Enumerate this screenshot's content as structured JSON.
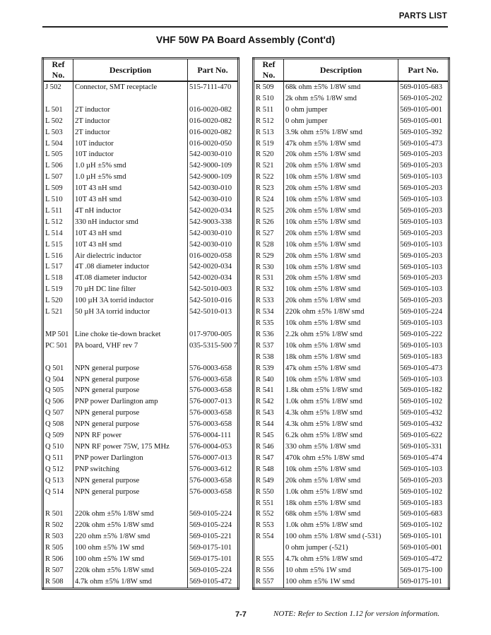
{
  "header": {
    "section": "PARTS LIST",
    "title": "VHF 50W PA Board Assembly (Cont'd)"
  },
  "columns": {
    "ref": "Ref No.",
    "description": "Description",
    "part": "Part No."
  },
  "left_rows": [
    [
      "J 502",
      "Connector, SMT receptacle",
      "515-7111-470"
    ],
    [
      "",
      "",
      ""
    ],
    [
      "L 501",
      "2T inductor",
      "016-0020-082"
    ],
    [
      "L 502",
      "2T inductor",
      "016-0020-082"
    ],
    [
      "L 503",
      "2T inductor",
      "016-0020-082"
    ],
    [
      "L 504",
      "10T inductor",
      "016-0020-050"
    ],
    [
      "L 505",
      "10T inductor",
      "542-0030-010"
    ],
    [
      "L 506",
      "1.0 µH ±5% smd",
      "542-9000-109"
    ],
    [
      "L 507",
      "1.0 µH ±5% smd",
      "542-9000-109"
    ],
    [
      "L 509",
      "10T 43 nH smd",
      "542-0030-010"
    ],
    [
      "L 510",
      "10T 43 nH smd",
      "542-0030-010"
    ],
    [
      "L 511",
      "4T nH inductor",
      "542-0020-034"
    ],
    [
      "L 512",
      "330 nH inductor smd",
      "542-9003-338"
    ],
    [
      "L 514",
      "10T 43 nH smd",
      "542-0030-010"
    ],
    [
      "L 515",
      "10T 43 nH smd",
      "542-0030-010"
    ],
    [
      "L 516",
      "Air dielectric inductor",
      "016-0020-058"
    ],
    [
      "L 517",
      "4T .08 diameter inductor",
      "542-0020-034"
    ],
    [
      "L 518",
      "4T.08 diameter inductor",
      "542-0020-034"
    ],
    [
      "L 519",
      "70 µH DC line filter",
      "542-5010-003"
    ],
    [
      "L 520",
      "100 µH 3A torrid inductor",
      "542-5010-016"
    ],
    [
      "L 521",
      "50 µH 3A torrid inductor",
      "542-5010-013"
    ],
    [
      "",
      "",
      ""
    ],
    [
      "MP 501",
      "Line choke tie-down bracket",
      "017-9700-005"
    ],
    [
      "PC 501",
      "PA board, VHF rev 7",
      "035-5315-500 7"
    ],
    [
      "",
      "",
      ""
    ],
    [
      "Q 501",
      "NPN general purpose",
      "576-0003-658"
    ],
    [
      "Q 504",
      "NPN general purpose",
      "576-0003-658"
    ],
    [
      "Q 505",
      "NPN general purpose",
      "576-0003-658"
    ],
    [
      "Q 506",
      "PNP power Darlington amp",
      "576-0007-013"
    ],
    [
      "Q 507",
      "NPN general purpose",
      "576-0003-658"
    ],
    [
      "Q 508",
      "NPN general purpose",
      "576-0003-658"
    ],
    [
      "Q 509",
      "NPN RF power",
      "576-0004-111"
    ],
    [
      "Q 510",
      "NPN RF power 75W, 175 MHz",
      "576-0004-053"
    ],
    [
      "Q 511",
      "PNP power Darlington",
      "576-0007-013"
    ],
    [
      "Q 512",
      "PNP switching",
      "576-0003-612"
    ],
    [
      "Q 513",
      "NPN general purpose",
      "576-0003-658"
    ],
    [
      "Q 514",
      "NPN general purpose",
      "576-0003-658"
    ],
    [
      "",
      "",
      ""
    ],
    [
      "R 501",
      "220k ohm ±5% 1/8W smd",
      "569-0105-224"
    ],
    [
      "R 502",
      "220k ohm ±5% 1/8W smd",
      "569-0105-224"
    ],
    [
      "R 503",
      "220 ohm ±5% 1/8W smd",
      "569-0105-221"
    ],
    [
      "R 505",
      "100 ohm ±5% 1W smd",
      "569-0175-101"
    ],
    [
      "R 506",
      "100 ohm ±5% 1W smd",
      "569-0175-101"
    ],
    [
      "R 507",
      "220k ohm ±5% 1/8W smd",
      "569-0105-224"
    ],
    [
      "R 508",
      "4.7k ohm ±5% 1/8W smd",
      "569-0105-472"
    ]
  ],
  "right_rows": [
    [
      "R 509",
      "68k ohm ±5% 1/8W smd",
      "569-0105-683"
    ],
    [
      "R 510",
      "2k ohm ±5% 1/8W smd",
      "569-0105-202"
    ],
    [
      "R 511",
      "0 ohm jumper",
      "569-0105-001"
    ],
    [
      "R 512",
      "0 ohm jumper",
      "569-0105-001"
    ],
    [
      "R 513",
      "3.9k ohm ±5% 1/8W smd",
      "569-0105-392"
    ],
    [
      "R 519",
      "47k ohm ±5% 1/8W smd",
      "569-0105-473"
    ],
    [
      "R 520",
      "20k ohm ±5% 1/8W smd",
      "569-0105-203"
    ],
    [
      "R 521",
      "20k ohm ±5% 1/8W smd",
      "569-0105-203"
    ],
    [
      "R 522",
      "10k ohm ±5% 1/8W smd",
      "569-0105-103"
    ],
    [
      "R 523",
      "20k ohm ±5% 1/8W smd",
      "569-0105-203"
    ],
    [
      "R 524",
      "10k ohm ±5% 1/8W smd",
      "569-0105-103"
    ],
    [
      "R 525",
      "20k ohm ±5% 1/8W smd",
      "569-0105-203"
    ],
    [
      "R 526",
      "10k ohm ±5% 1/8W smd",
      "569-0105-103"
    ],
    [
      "R 527",
      "20k ohm ±5% 1/8W smd",
      "569-0105-203"
    ],
    [
      "R 528",
      "10k ohm ±5% 1/8W smd",
      "569-0105-103"
    ],
    [
      "R 529",
      "20k ohm ±5% 1/8W smd",
      "569-0105-203"
    ],
    [
      "R 530",
      "10k ohm ±5% 1/8W smd",
      "569-0105-103"
    ],
    [
      "R 531",
      "20k ohm ±5% 1/8W smd",
      "569-0105-203"
    ],
    [
      "R 532",
      "10k ohm ±5% 1/8W smd",
      "569-0105-103"
    ],
    [
      "R 533",
      "20k ohm ±5% 1/8W smd",
      "569-0105-203"
    ],
    [
      "R 534",
      "220k ohm ±5% 1/8W smd",
      "569-0105-224"
    ],
    [
      "R 535",
      "10k ohm ±5% 1/8W smd",
      "569-0105-103"
    ],
    [
      "R 536",
      "2.2k ohm ±5% 1/8W smd",
      "569-0105-222"
    ],
    [
      "R 537",
      "10k ohm ±5% 1/8W smd",
      "569-0105-103"
    ],
    [
      "R 538",
      "18k ohm ±5% 1/8W smd",
      "569-0105-183"
    ],
    [
      "R 539",
      "47k ohm ±5% 1/8W smd",
      "569-0105-473"
    ],
    [
      "R 540",
      "10k ohm ±5% 1/8W smd",
      "569-0105-103"
    ],
    [
      "R 541",
      "1.8k ohm ±5% 1/8W smd",
      "569-0105-182"
    ],
    [
      "R 542",
      "1.0k ohm ±5% 1/8W smd",
      "569-0105-102"
    ],
    [
      "R 543",
      "4.3k ohm ±5% 1/8W smd",
      "569-0105-432"
    ],
    [
      "R 544",
      "4.3k ohm ±5% 1/8W smd",
      "569-0105-432"
    ],
    [
      "R 545",
      "6.2k ohm ±5% 1/8W smd",
      "569-0105-622"
    ],
    [
      "R 546",
      "330 ohm ±5% 1/8W smd",
      "569-0105-331"
    ],
    [
      "R 547",
      "470k ohm ±5% 1/8W smd",
      "569-0105-474"
    ],
    [
      "R 548",
      "10k ohm ±5% 1/8W smd",
      "569-0105-103"
    ],
    [
      "R 549",
      "20k ohm ±5% 1/8W smd",
      "569-0105-203"
    ],
    [
      "R 550",
      "1.0k ohm ±5% 1/8W smd",
      "569-0105-102"
    ],
    [
      "R 551",
      "18k ohm ±5% 1/8W smd",
      "569-0105-183"
    ],
    [
      "R 552",
      "68k ohm ±5% 1/8W smd",
      "569-0105-683"
    ],
    [
      "R 553",
      "1.0k ohm ±5% 1/8W smd",
      "569-0105-102"
    ],
    [
      "R 554",
      "100 ohm ±5% 1/8W smd (-531)",
      "569-0105-101"
    ],
    [
      "",
      "0 ohm jumper (-521)",
      "569-0105-001"
    ],
    [
      "R 555",
      "4.7k ohm ±5% 1/8W smd",
      "569-0105-472"
    ],
    [
      "R 556",
      "10 ohm ±5% 1W smd",
      "569-0175-100"
    ],
    [
      "R 557",
      "100 ohm ±5% 1W smd",
      "569-0175-101"
    ]
  ],
  "footer": {
    "page": "7-7",
    "note": "NOTE: Refer to Section 1.12 for version information."
  }
}
